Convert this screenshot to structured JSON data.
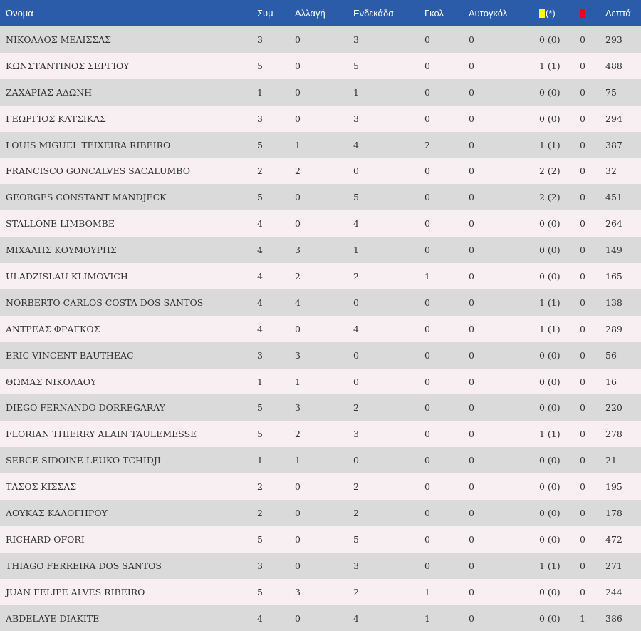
{
  "headers": {
    "name": "Όνομα",
    "appearances": "Συμ",
    "substitute": "Αλλαγή",
    "starting": "Ενδεκάδα",
    "goals": "Γκολ",
    "own_goals": "Αυτογκόλ",
    "yellow_suffix": "(*)",
    "minutes": "Λεπτά"
  },
  "colors": {
    "header_bg": "#2a5caa",
    "row_odd": "#dadada",
    "row_even": "#f7eff1",
    "yellow_card": "#ffff00",
    "red_card": "#e8001c"
  },
  "rows": [
    {
      "name": "ΝΙΚΟΛΑΟΣ ΜΕΛΙΣΣΑΣ",
      "apps": "3",
      "sub": "0",
      "start": "3",
      "goals": "0",
      "own": "0",
      "yellow": "0 (0)",
      "red": "0",
      "min": "293"
    },
    {
      "name": "ΚΩΝΣΤΑΝΤΙΝΟΣ ΣΕΡΓΙΟΥ",
      "apps": "5",
      "sub": "0",
      "start": "5",
      "goals": "0",
      "own": "0",
      "yellow": "1 (1)",
      "red": "0",
      "min": "488"
    },
    {
      "name": "ΖΑΧΑΡΙΑΣ ΑΔΩΝΗ",
      "apps": "1",
      "sub": "0",
      "start": "1",
      "goals": "0",
      "own": "0",
      "yellow": "0 (0)",
      "red": "0",
      "min": "75"
    },
    {
      "name": "ΓΕΩΡΓΙΟΣ ΚΑΤΣΙΚΑΣ",
      "apps": "3",
      "sub": "0",
      "start": "3",
      "goals": "0",
      "own": "0",
      "yellow": "0 (0)",
      "red": "0",
      "min": "294"
    },
    {
      "name": "LOUIS MIGUEL TEIXEIRA RIBEIRO",
      "apps": "5",
      "sub": "1",
      "start": "4",
      "goals": "2",
      "own": "0",
      "yellow": "1 (1)",
      "red": "0",
      "min": "387"
    },
    {
      "name": "FRANCISCO GONCALVES SACALUMBO",
      "apps": "2",
      "sub": "2",
      "start": "0",
      "goals": "0",
      "own": "0",
      "yellow": "2 (2)",
      "red": "0",
      "min": "32"
    },
    {
      "name": "GEORGES CONSTANT MANDJECK",
      "apps": "5",
      "sub": "0",
      "start": "5",
      "goals": "0",
      "own": "0",
      "yellow": "2 (2)",
      "red": "0",
      "min": "451"
    },
    {
      "name": "STALLONE LIMBOMBE",
      "apps": "4",
      "sub": "0",
      "start": "4",
      "goals": "0",
      "own": "0",
      "yellow": "0 (0)",
      "red": "0",
      "min": "264"
    },
    {
      "name": "ΜΙΧΑΛΗΣ ΚΟΥΜΟΥΡΗΣ",
      "apps": "4",
      "sub": "3",
      "start": "1",
      "goals": "0",
      "own": "0",
      "yellow": "0 (0)",
      "red": "0",
      "min": "149"
    },
    {
      "name": "ULADZISLAU KLIMOVICH",
      "apps": "4",
      "sub": "2",
      "start": "2",
      "goals": "1",
      "own": "0",
      "yellow": "0 (0)",
      "red": "0",
      "min": "165"
    },
    {
      "name": "NORBERTO CARLOS COSTA DOS SANTOS",
      "apps": "4",
      "sub": "4",
      "start": "0",
      "goals": "0",
      "own": "0",
      "yellow": "1 (1)",
      "red": "0",
      "min": "138"
    },
    {
      "name": "ΑΝΤΡΕΑΣ ΦΡΑΓΚΟΣ",
      "apps": "4",
      "sub": "0",
      "start": "4",
      "goals": "0",
      "own": "0",
      "yellow": "1 (1)",
      "red": "0",
      "min": "289"
    },
    {
      "name": "ERIC VINCENT BAUTHEAC",
      "apps": "3",
      "sub": "3",
      "start": "0",
      "goals": "0",
      "own": "0",
      "yellow": "0 (0)",
      "red": "0",
      "min": "56"
    },
    {
      "name": "ΘΩΜΑΣ ΝΙΚΟΛΑΟΥ",
      "apps": "1",
      "sub": "1",
      "start": "0",
      "goals": "0",
      "own": "0",
      "yellow": "0 (0)",
      "red": "0",
      "min": "16"
    },
    {
      "name": "DIEGO FERNANDO DORREGARAY",
      "apps": "5",
      "sub": "3",
      "start": "2",
      "goals": "0",
      "own": "0",
      "yellow": "0 (0)",
      "red": "0",
      "min": "220"
    },
    {
      "name": "FLORIAN THIERRY ALAIN TAULEMESSE",
      "apps": "5",
      "sub": "2",
      "start": "3",
      "goals": "0",
      "own": "0",
      "yellow": "1 (1)",
      "red": "0",
      "min": "278"
    },
    {
      "name": "SERGE SIDOINE LEUKO TCHIDJI",
      "apps": "1",
      "sub": "1",
      "start": "0",
      "goals": "0",
      "own": "0",
      "yellow": "0 (0)",
      "red": "0",
      "min": "21"
    },
    {
      "name": "ΤΑΣΟΣ ΚΙΣΣΑΣ",
      "apps": "2",
      "sub": "0",
      "start": "2",
      "goals": "0",
      "own": "0",
      "yellow": "0 (0)",
      "red": "0",
      "min": "195"
    },
    {
      "name": "ΛΟΥΚΑΣ ΚΑΛΟΓΗΡΟΥ",
      "apps": "2",
      "sub": "0",
      "start": "2",
      "goals": "0",
      "own": "0",
      "yellow": "0 (0)",
      "red": "0",
      "min": "178"
    },
    {
      "name": "RICHARD OFORI",
      "apps": "5",
      "sub": "0",
      "start": "5",
      "goals": "0",
      "own": "0",
      "yellow": "0 (0)",
      "red": "0",
      "min": "472"
    },
    {
      "name": "THIAGO FERREIRA DOS SANTOS",
      "apps": "3",
      "sub": "0",
      "start": "3",
      "goals": "0",
      "own": "0",
      "yellow": "1 (1)",
      "red": "0",
      "min": "271"
    },
    {
      "name": "JUAN FELIPE ALVES RIBEIRO",
      "apps": "5",
      "sub": "3",
      "start": "2",
      "goals": "1",
      "own": "0",
      "yellow": "0 (0)",
      "red": "0",
      "min": "244"
    },
    {
      "name": "ABDELAYE DIAKITE",
      "apps": "4",
      "sub": "0",
      "start": "4",
      "goals": "1",
      "own": "0",
      "yellow": "0 (0)",
      "red": "1",
      "min": "386"
    }
  ]
}
